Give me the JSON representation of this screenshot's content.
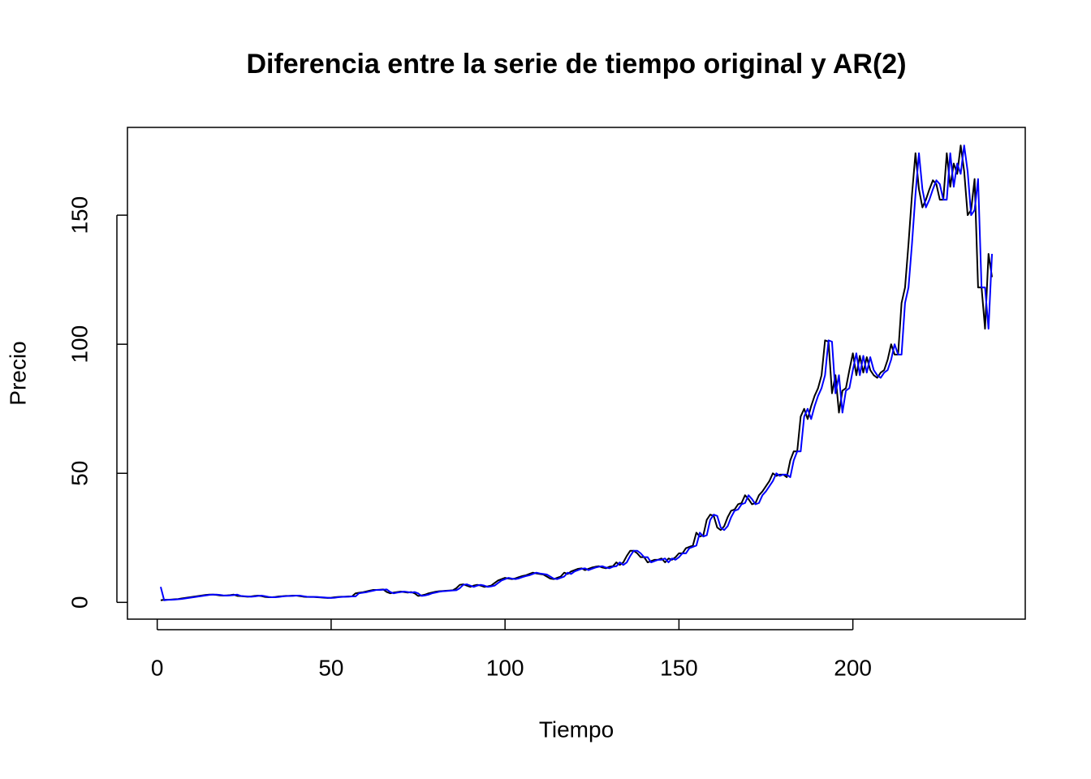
{
  "chart_data": {
    "type": "line",
    "title": "Diferencia entre la serie de tiempo original y AR(2)",
    "x_label": "Tiempo",
    "y_label": "Precio",
    "xlim": [
      -8.56,
      249.56
    ],
    "ylim": [
      -6.5,
      184
    ],
    "xticks": [
      0,
      50,
      100,
      150,
      200
    ],
    "yticks": [
      0,
      50,
      100,
      150
    ],
    "x": [
      1,
      2,
      3,
      4,
      5,
      6,
      7,
      8,
      9,
      10,
      11,
      12,
      13,
      14,
      15,
      16,
      17,
      18,
      19,
      20,
      21,
      22,
      23,
      24,
      25,
      26,
      27,
      28,
      29,
      30,
      31,
      32,
      33,
      34,
      35,
      36,
      37,
      38,
      39,
      40,
      41,
      42,
      43,
      44,
      45,
      46,
      47,
      48,
      49,
      50,
      51,
      52,
      53,
      54,
      55,
      56,
      57,
      58,
      59,
      60,
      61,
      62,
      63,
      64,
      65,
      66,
      67,
      68,
      69,
      70,
      71,
      72,
      73,
      74,
      75,
      76,
      77,
      78,
      79,
      80,
      81,
      82,
      83,
      84,
      85,
      86,
      87,
      88,
      89,
      90,
      91,
      92,
      93,
      94,
      95,
      96,
      97,
      98,
      99,
      100,
      101,
      102,
      103,
      104,
      105,
      106,
      107,
      108,
      109,
      110,
      111,
      112,
      113,
      114,
      115,
      116,
      117,
      118,
      119,
      120,
      121,
      122,
      123,
      124,
      125,
      126,
      127,
      128,
      129,
      130,
      131,
      132,
      133,
      134,
      135,
      136,
      137,
      138,
      139,
      140,
      141,
      142,
      143,
      144,
      145,
      146,
      147,
      148,
      149,
      150,
      151,
      152,
      153,
      154,
      155,
      156,
      157,
      158,
      159,
      160,
      161,
      162,
      163,
      164,
      165,
      166,
      167,
      168,
      169,
      170,
      171,
      172,
      173,
      174,
      175,
      176,
      177,
      178,
      179,
      180,
      181,
      182,
      183,
      184,
      185,
      186,
      187,
      188,
      189,
      190,
      191,
      192,
      193,
      194,
      195,
      196,
      197,
      198,
      199,
      200,
      201,
      202,
      203,
      204,
      205,
      206,
      207,
      208,
      209,
      210,
      211,
      212,
      213,
      214,
      215,
      216,
      217,
      218,
      219,
      220,
      221,
      222,
      223,
      224,
      225,
      226,
      227,
      228,
      229,
      230,
      231,
      232,
      233,
      234,
      235,
      236,
      237,
      238,
      239,
      240
    ],
    "series": [
      {
        "color": "#000000",
        "values": [
          0.8,
          1,
          1,
          1.1,
          1.2,
          1.3,
          1.5,
          1.7,
          1.9,
          2.1,
          2.3,
          2.5,
          2.7,
          2.9,
          3,
          3,
          2.9,
          2.7,
          2.6,
          2.7,
          2.8,
          3,
          2.5,
          2.4,
          2.3,
          2.2,
          2.3,
          2.5,
          2.6,
          2.4,
          2.1,
          2,
          2,
          2.1,
          2.3,
          2.4,
          2.5,
          2.5,
          2.6,
          2.6,
          2.4,
          2.2,
          2.1,
          2.1,
          2.1,
          2,
          1.9,
          1.8,
          1.7,
          1.8,
          2,
          2.1,
          2.2,
          2.2,
          2.3,
          2.3,
          3.5,
          3.7,
          3.9,
          4.2,
          4.5,
          4.8,
          4.8,
          4.9,
          5,
          4,
          3.5,
          3.8,
          4,
          4.2,
          4,
          3.8,
          4,
          3.5,
          2.5,
          2.7,
          3,
          3.5,
          3.8,
          4.1,
          4.3,
          4.4,
          4.5,
          4.6,
          4.7,
          5.5,
          6.8,
          7,
          6.5,
          6,
          6.5,
          6.8,
          6.5,
          6,
          6.2,
          6.5,
          7.5,
          8.5,
          9,
          9.5,
          9.2,
          9,
          9.3,
          9.8,
          10.2,
          10.5,
          11,
          11.5,
          11.2,
          11,
          10.8,
          10,
          9.2,
          9,
          9.5,
          10,
          11.5,
          11,
          12,
          12.5,
          13,
          13.2,
          12.5,
          13,
          13.5,
          13.8,
          14,
          13.5,
          13.2,
          13.8,
          14,
          15.5,
          14.5,
          15.5,
          18,
          20,
          20,
          19,
          17.5,
          17.5,
          15.5,
          16,
          16.5,
          16.5,
          17,
          15.5,
          17,
          16.5,
          17.5,
          19,
          19,
          21,
          21.5,
          22,
          27,
          25.5,
          26,
          32,
          34,
          33.5,
          29,
          28,
          29.5,
          33,
          35.5,
          36,
          38,
          38.5,
          41.5,
          40,
          38,
          38.5,
          41.5,
          43,
          45,
          47,
          50,
          49,
          49.5,
          49.5,
          48.5,
          55,
          58.5,
          58.5,
          72,
          75,
          71,
          76,
          80,
          83,
          88,
          101.5,
          101,
          81,
          88,
          73.5,
          82,
          83,
          90,
          96.5,
          88,
          95.5,
          89,
          95,
          90,
          88,
          87,
          89,
          90,
          94,
          100,
          96,
          96,
          116,
          122,
          139,
          158,
          174,
          160,
          153,
          156,
          160,
          163.5,
          162,
          156,
          156,
          174,
          161,
          170,
          166,
          177,
          167,
          150,
          152,
          164,
          122,
          122,
          106,
          135,
          126
        ]
      },
      {
        "color": "#0000ff",
        "values": [
          6,
          0.8,
          1,
          1,
          1.1,
          1.2,
          1.3,
          1.5,
          1.7,
          1.9,
          2.1,
          2.3,
          2.5,
          2.7,
          2.9,
          3,
          3,
          2.9,
          2.7,
          2.6,
          2.7,
          2.8,
          3,
          2.5,
          2.4,
          2.3,
          2.2,
          2.3,
          2.5,
          2.6,
          2.4,
          2.1,
          2,
          2,
          2.1,
          2.3,
          2.4,
          2.5,
          2.5,
          2.6,
          2.6,
          2.4,
          2.2,
          2.1,
          2.1,
          2.1,
          2,
          1.9,
          1.8,
          1.7,
          1.8,
          2,
          2.1,
          2.2,
          2.2,
          2.3,
          2.3,
          3.5,
          3.7,
          3.9,
          4.2,
          4.5,
          4.8,
          4.8,
          4.9,
          5,
          4,
          3.5,
          3.8,
          4,
          4.2,
          4,
          3.8,
          4,
          3.5,
          2.5,
          2.7,
          3,
          3.5,
          3.8,
          4.1,
          4.3,
          4.4,
          4.5,
          4.6,
          4.7,
          5.5,
          6.8,
          7,
          6.5,
          6,
          6.5,
          6.8,
          6.5,
          6,
          6.2,
          6.5,
          7.5,
          8.5,
          9,
          9.5,
          9.2,
          9,
          9.3,
          9.8,
          10.2,
          10.5,
          11,
          11.5,
          11.2,
          11,
          10.8,
          10,
          9.2,
          9,
          9.5,
          10,
          11.5,
          11,
          12,
          12.5,
          13,
          13.2,
          12.5,
          13,
          13.5,
          13.8,
          14,
          13.5,
          13.2,
          13.8,
          14,
          15.5,
          14.5,
          15.5,
          18,
          20,
          20,
          19,
          17.5,
          17.5,
          15.5,
          16,
          16.5,
          16.5,
          17,
          15.5,
          17,
          16.5,
          17.5,
          19,
          19,
          21,
          21.5,
          22,
          27,
          25.5,
          26,
          32,
          34,
          33.5,
          29,
          28,
          29.5,
          33,
          35.5,
          36,
          38,
          38.5,
          41.5,
          40,
          38,
          38.5,
          41.5,
          43,
          45,
          47,
          50,
          49,
          49.5,
          49.5,
          48.5,
          55,
          58.5,
          58.5,
          72,
          75,
          71,
          76,
          80,
          83,
          88,
          101.5,
          101,
          81,
          88,
          73.5,
          82,
          83,
          90,
          96.5,
          88,
          95.5,
          89,
          95,
          90,
          88,
          87,
          89,
          90,
          94,
          100,
          96,
          96,
          116,
          122,
          139,
          158,
          174,
          160,
          153,
          156,
          160,
          163.5,
          162,
          156,
          156,
          174,
          161,
          170,
          166,
          177,
          167,
          150,
          152,
          164,
          122,
          122,
          106,
          135
        ]
      }
    ]
  }
}
